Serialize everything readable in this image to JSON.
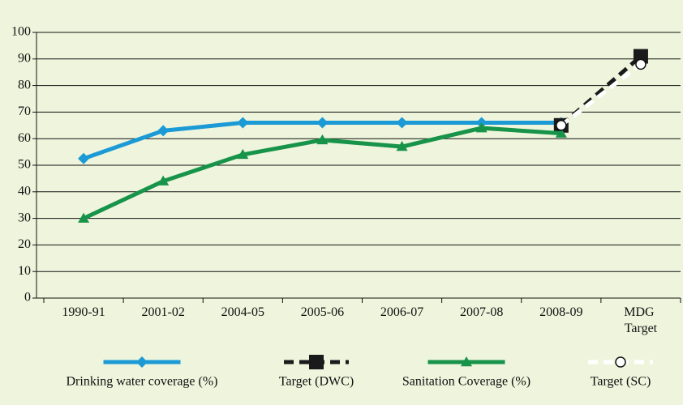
{
  "chart_data": {
    "type": "line",
    "categories": [
      "1990-91",
      "2001-02",
      "2004-05",
      "2005-06",
      "2006-07",
      "2007-08",
      "2008-09",
      "MDG Target"
    ],
    "series": [
      {
        "name": "Drinking water coverage (%)",
        "color": "#1b9ad6",
        "marker": "diamond",
        "dashed": false,
        "values": [
          52.5,
          63,
          66,
          66,
          66,
          66,
          66,
          null
        ]
      },
      {
        "name": "Target (DWC)",
        "color": "#1a1a1a",
        "marker": "square",
        "dashed": true,
        "values": [
          null,
          null,
          null,
          null,
          null,
          null,
          65,
          91
        ]
      },
      {
        "name": "Sanitation Coverage (%)",
        "color": "#17934a",
        "marker": "triangle",
        "dashed": false,
        "values": [
          30,
          44,
          54,
          59.5,
          57,
          64,
          62,
          null
        ]
      },
      {
        "name": "Target (SC)",
        "color": "#ffffff",
        "marker": "circle",
        "dashed": true,
        "values": [
          null,
          null,
          null,
          null,
          null,
          null,
          65,
          88
        ]
      }
    ],
    "ylim": [
      0,
      100
    ],
    "yticks": [
      0,
      10,
      20,
      30,
      40,
      50,
      60,
      70,
      80,
      90,
      100
    ],
    "grid": true,
    "legend": "bottom"
  }
}
